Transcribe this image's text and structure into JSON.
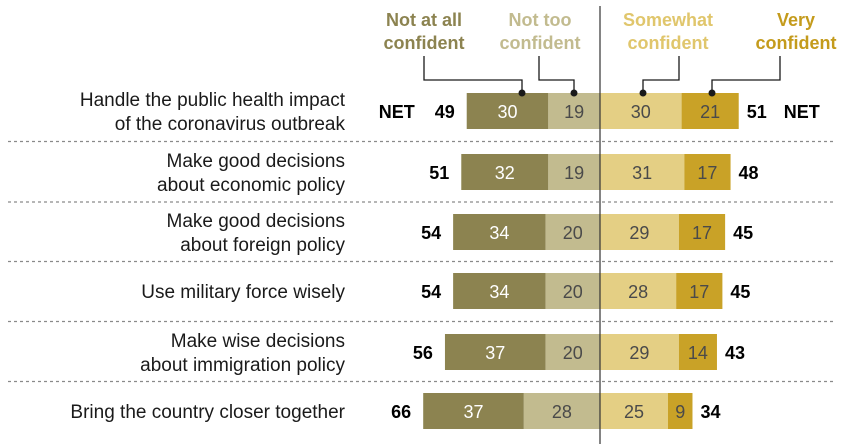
{
  "chart_data": {
    "type": "bar",
    "orientation": "diverging-stacked-horizontal",
    "legend": {
      "not_at_all": [
        "Not at all",
        "confident"
      ],
      "not_too": [
        "Not too",
        "confident"
      ],
      "somewhat": [
        "Somewhat",
        "confident"
      ],
      "very": [
        "Very",
        "confident"
      ]
    },
    "net_label": "NET",
    "colors": {
      "not_at_all": "#8c8350",
      "not_too": "#c2bb8f",
      "somewhat": "#e4cf84",
      "very": "#c9a227",
      "legend_not_at_all": "#8c8350",
      "legend_not_too": "#c2bb8f",
      "legend_somewhat": "#e0c66c",
      "legend_very": "#c49b1c"
    },
    "categories": [
      [
        "Handle the public health impact",
        "of the coronavirus outbreak"
      ],
      [
        "Make good decisions",
        "about economic policy"
      ],
      [
        "Make good decisions",
        "about foreign policy"
      ],
      [
        "Use military force wisely"
      ],
      [
        "Make wise decisions",
        "about immigration policy"
      ],
      [
        "Bring the country closer together"
      ]
    ],
    "series": [
      {
        "name": "Not at all confident",
        "key": "not_at_all",
        "values": [
          30,
          32,
          34,
          34,
          37,
          37
        ]
      },
      {
        "name": "Not too confident",
        "key": "not_too",
        "values": [
          19,
          19,
          20,
          20,
          20,
          28
        ]
      },
      {
        "name": "Somewhat confident",
        "key": "somewhat",
        "values": [
          30,
          31,
          29,
          28,
          29,
          25
        ]
      },
      {
        "name": "Very confident",
        "key": "very",
        "values": [
          21,
          17,
          17,
          17,
          14,
          9
        ]
      }
    ],
    "net_not_confident": [
      49,
      51,
      54,
      54,
      56,
      66
    ],
    "net_confident": [
      51,
      48,
      45,
      45,
      43,
      34
    ]
  }
}
